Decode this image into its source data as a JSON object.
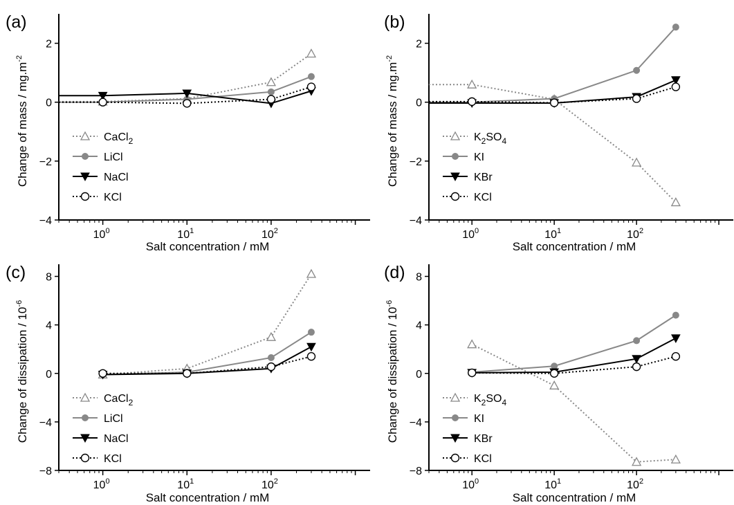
{
  "chart_data": [
    {
      "panel_label": "(a)",
      "type": "line",
      "xlabel": "Salt concentration / mM",
      "ylabel": {
        "text": "Change of mass / mg.m",
        "sup": "-2"
      },
      "xscale": "log",
      "xlim": [
        0.3,
        1500
      ],
      "ylim": [
        -4,
        3
      ],
      "xticks": [
        1,
        10,
        100
      ],
      "yticks": [
        -4,
        -2,
        0,
        2
      ],
      "ytick_labels": [
        "−4",
        "−2",
        "0",
        "2"
      ],
      "legend_position": "bottom-left",
      "x": [
        0.3,
        1,
        10,
        100,
        300
      ],
      "series": [
        {
          "name": "CaCl2",
          "legend_base": "CaCl",
          "legend_sub": "2",
          "color": "#888888",
          "marker": "triangle",
          "line": "dotted",
          "values": [
            0.02,
            0.02,
            0.12,
            0.68,
            1.65
          ]
        },
        {
          "name": "LiCl",
          "legend_base": "LiCl",
          "legend_sub": "",
          "color": "#888888",
          "marker": "dot",
          "line": "solid",
          "values": [
            0.0,
            0.0,
            0.1,
            0.35,
            0.87
          ]
        },
        {
          "name": "NaCl",
          "legend_base": "NaCl",
          "legend_sub": "",
          "color": "#000000",
          "marker": "down-triangle",
          "line": "solid",
          "values": [
            0.22,
            0.22,
            0.3,
            -0.04,
            0.38
          ]
        },
        {
          "name": "KCl",
          "legend_base": "KCl",
          "legend_sub": "",
          "color": "#000000",
          "marker": "circle",
          "line": "dotted",
          "values": [
            0.0,
            0.0,
            -0.04,
            0.1,
            0.52
          ]
        }
      ]
    },
    {
      "panel_label": "(b)",
      "type": "line",
      "xlabel": "Salt concentration / mM",
      "ylabel": {
        "text": "Change of mass / mg.m",
        "sup": "-2"
      },
      "xscale": "log",
      "xlim": [
        0.3,
        1500
      ],
      "ylim": [
        -4,
        3
      ],
      "xticks": [
        1,
        10,
        100
      ],
      "yticks": [
        -4,
        -2,
        0,
        2
      ],
      "ytick_labels": [
        "−4",
        "−2",
        "0",
        "2"
      ],
      "legend_position": "bottom-left",
      "x": [
        0.3,
        1,
        10,
        100,
        300
      ],
      "series": [
        {
          "name": "K2SO4",
          "legend_base": "K",
          "legend_sub": "2",
          "legend_tail": "SO",
          "legend_sub2": "4",
          "color": "#888888",
          "marker": "triangle",
          "line": "dotted",
          "values": [
            0.6,
            0.6,
            0.1,
            -2.05,
            -3.4
          ]
        },
        {
          "name": "KI",
          "legend_base": "KI",
          "legend_sub": "",
          "color": "#888888",
          "marker": "dot",
          "line": "solid",
          "values": [
            0.0,
            0.0,
            0.12,
            1.08,
            2.55
          ]
        },
        {
          "name": "KBr",
          "legend_base": "KBr",
          "legend_sub": "",
          "color": "#000000",
          "marker": "down-triangle",
          "line": "solid",
          "values": [
            -0.03,
            -0.03,
            -0.03,
            0.18,
            0.75
          ]
        },
        {
          "name": "KCl",
          "legend_base": "KCl",
          "legend_sub": "",
          "color": "#000000",
          "marker": "circle",
          "line": "dotted",
          "values": [
            0.02,
            0.02,
            -0.02,
            0.12,
            0.52
          ]
        }
      ]
    },
    {
      "panel_label": "(c)",
      "type": "line",
      "xlabel": "Salt concentration / mM",
      "ylabel": {
        "text": "Change of dissipation / 10",
        "sup": "-6"
      },
      "xscale": "log",
      "xlim": [
        0.3,
        1500
      ],
      "ylim": [
        -8,
        9
      ],
      "xticks": [
        1,
        10,
        100
      ],
      "yticks": [
        -8,
        -4,
        0,
        4,
        8
      ],
      "ytick_labels": [
        "−8",
        "−4",
        "0",
        "4",
        "8"
      ],
      "legend_position": "bottom-left",
      "x": [
        1,
        10,
        100,
        300
      ],
      "series": [
        {
          "name": "CaCl2",
          "legend_base": "CaCl",
          "legend_sub": "2",
          "color": "#888888",
          "marker": "triangle",
          "line": "dotted",
          "values": [
            -0.1,
            0.4,
            3.0,
            8.2
          ]
        },
        {
          "name": "LiCl",
          "legend_base": "LiCl",
          "legend_sub": "",
          "color": "#888888",
          "marker": "dot",
          "line": "solid",
          "values": [
            -0.1,
            0.1,
            1.3,
            3.4
          ]
        },
        {
          "name": "NaCl",
          "legend_base": "NaCl",
          "legend_sub": "",
          "color": "#000000",
          "marker": "down-triangle",
          "line": "solid",
          "values": [
            -0.1,
            0.0,
            0.4,
            2.2
          ]
        },
        {
          "name": "KCl",
          "legend_base": "KCl",
          "legend_sub": "",
          "color": "#000000",
          "marker": "circle",
          "line": "dotted",
          "values": [
            0.0,
            0.0,
            0.55,
            1.4
          ]
        }
      ]
    },
    {
      "panel_label": "(d)",
      "type": "line",
      "xlabel": "Salt concentration / mM",
      "ylabel": {
        "text": "Change of dissipation / 10",
        "sup": "-6"
      },
      "xscale": "log",
      "xlim": [
        0.3,
        1500
      ],
      "ylim": [
        -8,
        9
      ],
      "xticks": [
        1,
        10,
        100
      ],
      "yticks": [
        -8,
        -4,
        0,
        4,
        8
      ],
      "ytick_labels": [
        "−8",
        "−4",
        "0",
        "4",
        "8"
      ],
      "legend_position": "bottom-left",
      "x": [
        1,
        10,
        100,
        300
      ],
      "series": [
        {
          "name": "K2SO4",
          "legend_base": "K",
          "legend_sub": "2",
          "legend_tail": "SO",
          "legend_sub2": "4",
          "color": "#888888",
          "marker": "triangle",
          "line": "dotted",
          "values": [
            2.4,
            -1.0,
            -7.3,
            -7.1
          ]
        },
        {
          "name": "KI",
          "legend_base": "KI",
          "legend_sub": "",
          "color": "#888888",
          "marker": "dot",
          "line": "solid",
          "values": [
            0.1,
            0.6,
            2.7,
            4.8
          ]
        },
        {
          "name": "KBr",
          "legend_base": "KBr",
          "legend_sub": "",
          "color": "#000000",
          "marker": "down-triangle",
          "line": "solid",
          "values": [
            0.05,
            0.1,
            1.2,
            2.9
          ]
        },
        {
          "name": "KCl",
          "legend_base": "KCl",
          "legend_sub": "",
          "color": "#000000",
          "marker": "circle",
          "line": "dotted",
          "values": [
            0.05,
            0.0,
            0.55,
            1.4
          ]
        }
      ]
    }
  ]
}
